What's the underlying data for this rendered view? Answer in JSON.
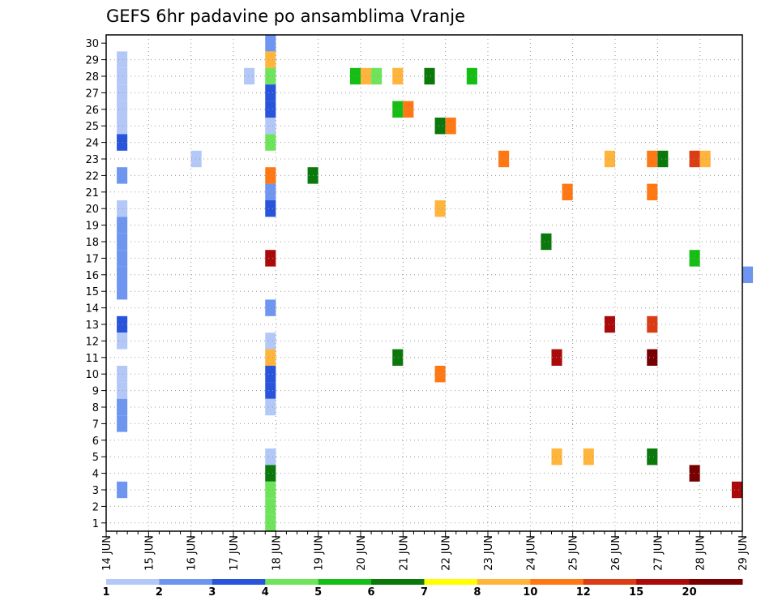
{
  "chart_data": {
    "type": "heatmap",
    "title": "GEFS 6hr padavine po ansamblima Vranje",
    "x_ticks": [
      "14 JUN",
      "15 JUN",
      "16 JUN",
      "17 JUN",
      "18 JUN",
      "19 JUN",
      "20 JUN",
      "21 JUN",
      "22 JUN",
      "23 JUN",
      "24 JUN",
      "25 JUN",
      "26 JUN",
      "27 JUN",
      "28 JUN",
      "29 JUN"
    ],
    "y_ticks": [
      "1",
      "2",
      "3",
      "4",
      "5",
      "6",
      "7",
      "8",
      "9",
      "10",
      "11",
      "12",
      "13",
      "14",
      "15",
      "16",
      "17",
      "18",
      "19",
      "20",
      "21",
      "22",
      "23",
      "24",
      "25",
      "26",
      "27",
      "28",
      "29",
      "30"
    ],
    "grid": true,
    "legend_placement": "bottom",
    "legend_labels": [
      "1",
      "2",
      "3",
      "4",
      "5",
      "6",
      "7",
      "8",
      "10",
      "12",
      "15",
      "20"
    ],
    "legend_colors": [
      "#b4c8f8",
      "#6e96f0",
      "#2854dc",
      "#6ee45a",
      "#14be14",
      "#0a780a",
      "#ffff00",
      "#ffb43c",
      "#ff7814",
      "#dc3c14",
      "#aa0a0a",
      "#780000"
    ],
    "cells": [
      {
        "member": 29,
        "time": "2023-06-14 06:00",
        "mm": 1
      },
      {
        "member": 28,
        "time": "2023-06-14 06:00",
        "mm": 1
      },
      {
        "member": 27,
        "time": "2023-06-14 06:00",
        "mm": 1
      },
      {
        "member": 26,
        "time": "2023-06-14 06:00",
        "mm": 1
      },
      {
        "member": 25,
        "time": "2023-06-14 06:00",
        "mm": 1
      },
      {
        "member": 24,
        "time": "2023-06-14 06:00",
        "mm": 3
      },
      {
        "member": 22,
        "time": "2023-06-14 06:00",
        "mm": 2
      },
      {
        "member": 20,
        "time": "2023-06-14 06:00",
        "mm": 1
      },
      {
        "member": 19,
        "time": "2023-06-14 06:00",
        "mm": 2
      },
      {
        "member": 18,
        "time": "2023-06-14 06:00",
        "mm": 2
      },
      {
        "member": 17,
        "time": "2023-06-14 06:00",
        "mm": 2
      },
      {
        "member": 16,
        "time": "2023-06-14 06:00",
        "mm": 2
      },
      {
        "member": 15,
        "time": "2023-06-14 06:00",
        "mm": 2
      },
      {
        "member": 13,
        "time": "2023-06-14 06:00",
        "mm": 3
      },
      {
        "member": 12,
        "time": "2023-06-14 06:00",
        "mm": 1
      },
      {
        "member": 10,
        "time": "2023-06-14 06:00",
        "mm": 1
      },
      {
        "member": 9,
        "time": "2023-06-14 06:00",
        "mm": 1
      },
      {
        "member": 8,
        "time": "2023-06-14 06:00",
        "mm": 2
      },
      {
        "member": 7,
        "time": "2023-06-14 06:00",
        "mm": 2
      },
      {
        "member": 3,
        "time": "2023-06-14 06:00",
        "mm": 2
      },
      {
        "member": 28,
        "time": "2023-06-17 06:00",
        "mm": 1
      },
      {
        "member": 23,
        "time": "2023-06-16 00:00",
        "mm": 1
      },
      {
        "member": 30,
        "time": "2023-06-17 18:00",
        "mm": 2
      },
      {
        "member": 29,
        "time": "2023-06-17 18:00",
        "mm": 8
      },
      {
        "member": 28,
        "time": "2023-06-17 18:00",
        "mm": 4
      },
      {
        "member": 27,
        "time": "2023-06-17 18:00",
        "mm": 3
      },
      {
        "member": 26,
        "time": "2023-06-17 18:00",
        "mm": 3
      },
      {
        "member": 25,
        "time": "2023-06-17 18:00",
        "mm": 1
      },
      {
        "member": 24,
        "time": "2023-06-17 18:00",
        "mm": 4
      },
      {
        "member": 22,
        "time": "2023-06-17 18:00",
        "mm": 10
      },
      {
        "member": 21,
        "time": "2023-06-17 18:00",
        "mm": 2
      },
      {
        "member": 20,
        "time": "2023-06-17 18:00",
        "mm": 3
      },
      {
        "member": 17,
        "time": "2023-06-17 18:00",
        "mm": 15
      },
      {
        "member": 14,
        "time": "2023-06-17 18:00",
        "mm": 2
      },
      {
        "member": 12,
        "time": "2023-06-17 18:00",
        "mm": 1
      },
      {
        "member": 11,
        "time": "2023-06-17 18:00",
        "mm": 8
      },
      {
        "member": 10,
        "time": "2023-06-17 18:00",
        "mm": 3
      },
      {
        "member": 9,
        "time": "2023-06-17 18:00",
        "mm": 3
      },
      {
        "member": 8,
        "time": "2023-06-17 18:00",
        "mm": 1
      },
      {
        "member": 5,
        "time": "2023-06-17 18:00",
        "mm": 1
      },
      {
        "member": 4,
        "time": "2023-06-17 18:00",
        "mm": 6
      },
      {
        "member": 3,
        "time": "2023-06-17 18:00",
        "mm": 4
      },
      {
        "member": 2,
        "time": "2023-06-17 18:00",
        "mm": 4
      },
      {
        "member": 1,
        "time": "2023-06-17 18:00",
        "mm": 4
      },
      {
        "member": 28,
        "time": "2023-06-19 18:00",
        "mm": 5
      },
      {
        "member": 28,
        "time": "2023-06-20 00:00",
        "mm": 8
      },
      {
        "member": 28,
        "time": "2023-06-20 06:00",
        "mm": 4
      },
      {
        "member": 26,
        "time": "2023-06-20 18:00",
        "mm": 5
      },
      {
        "member": 26,
        "time": "2023-06-21 00:00",
        "mm": 10
      },
      {
        "member": 25,
        "time": "2023-06-21 18:00",
        "mm": 6
      },
      {
        "member": 25,
        "time": "2023-06-22 00:00",
        "mm": 10
      },
      {
        "member": 28,
        "time": "2023-06-20 18:00",
        "mm": 8
      },
      {
        "member": 28,
        "time": "2023-06-21 12:00",
        "mm": 6
      },
      {
        "member": 28,
        "time": "2023-06-22 12:00",
        "mm": 5
      },
      {
        "member": 23,
        "time": "2023-06-23 06:00",
        "mm": 10
      },
      {
        "member": 23,
        "time": "2023-06-25 18:00",
        "mm": 8
      },
      {
        "member": 23,
        "time": "2023-06-26 18:00",
        "mm": 10
      },
      {
        "member": 23,
        "time": "2023-06-27 00:00",
        "mm": 6
      },
      {
        "member": 23,
        "time": "2023-06-27 18:00",
        "mm": 12
      },
      {
        "member": 23,
        "time": "2023-06-28 00:00",
        "mm": 8
      },
      {
        "member": 22,
        "time": "2023-06-18 18:00",
        "mm": 6
      },
      {
        "member": 21,
        "time": "2023-06-24 18:00",
        "mm": 10
      },
      {
        "member": 21,
        "time": "2023-06-26 18:00",
        "mm": 10
      },
      {
        "member": 20,
        "time": "2023-06-21 18:00",
        "mm": 8
      },
      {
        "member": 18,
        "time": "2023-06-24 06:00",
        "mm": 6
      },
      {
        "member": 17,
        "time": "2023-06-27 18:00",
        "mm": 5
      },
      {
        "member": 13,
        "time": "2023-06-25 18:00",
        "mm": 15
      },
      {
        "member": 13,
        "time": "2023-06-26 18:00",
        "mm": 12
      },
      {
        "member": 11,
        "time": "2023-06-24 12:00",
        "mm": 15
      },
      {
        "member": 11,
        "time": "2023-06-26 18:00",
        "mm": 20
      },
      {
        "member": 11,
        "time": "2023-06-20 18:00",
        "mm": 6
      },
      {
        "member": 10,
        "time": "2023-06-21 18:00",
        "mm": 10
      },
      {
        "member": 5,
        "time": "2023-06-24 12:00",
        "mm": 8
      },
      {
        "member": 5,
        "time": "2023-06-25 06:00",
        "mm": 8
      },
      {
        "member": 5,
        "time": "2023-06-26 18:00",
        "mm": 6
      },
      {
        "member": 4,
        "time": "2023-06-27 18:00",
        "mm": 20
      },
      {
        "member": 3,
        "time": "2023-06-28 18:00",
        "mm": 15
      },
      {
        "member": 16,
        "time": "2023-06-29 00:00",
        "mm": 2
      }
    ]
  }
}
